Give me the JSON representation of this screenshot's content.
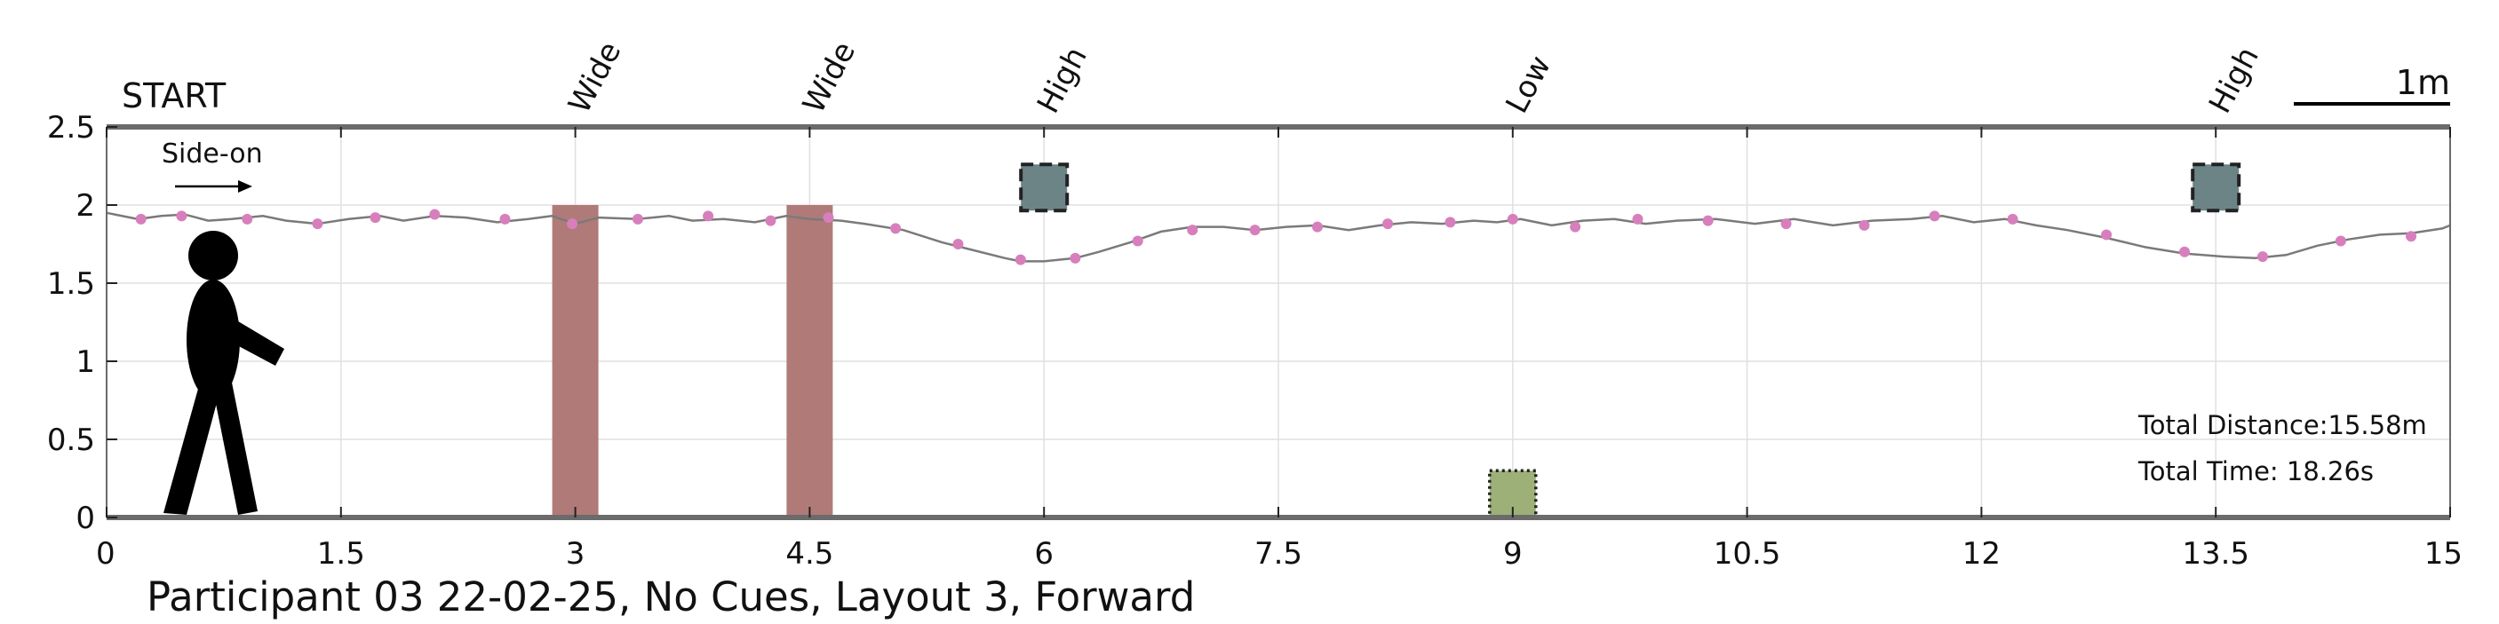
{
  "chart_data": {
    "type": "line",
    "title": "",
    "caption": "Participant 03 22-02-25, No Cues, Layout 3, Forward",
    "xlabel": "",
    "ylabel": "",
    "xlim": [
      0,
      15
    ],
    "ylim": [
      0,
      2.5
    ],
    "xticks": [
      0,
      1.5,
      3,
      4.5,
      6,
      7.5,
      9,
      10.5,
      12,
      13.5,
      15
    ],
    "xtick_labels": [
      "0",
      "1.5",
      "3",
      "4.5",
      "6",
      "7.5",
      "9",
      "10.5",
      "12",
      "13.5",
      "15"
    ],
    "yticks": [
      0,
      0.5,
      1,
      1.5,
      2,
      2.5
    ],
    "ytick_labels": [
      "0",
      "0.5",
      "1",
      "1.5",
      "2",
      "2.5"
    ],
    "grid": true,
    "start_label": "START",
    "direction_label": "Side-on",
    "scale_bar_label": "1m",
    "stats": {
      "distance": "Total Distance:15.58m",
      "time": "Total Time: 18.26s"
    },
    "obstacles": [
      {
        "label": "Wide",
        "x": 3.0,
        "kind": "wide"
      },
      {
        "label": "Wide",
        "x": 4.5,
        "kind": "wide"
      },
      {
        "label": "High",
        "x": 6.0,
        "kind": "high"
      },
      {
        "label": "Low",
        "x": 9.0,
        "kind": "low"
      },
      {
        "label": "High",
        "x": 13.5,
        "kind": "high"
      }
    ],
    "series": [
      {
        "path": {
          "x": [
            0,
            0.2,
            0.35,
            0.5,
            0.65,
            0.8,
            1.0,
            1.15,
            1.35,
            1.55,
            1.75,
            1.9,
            2.1,
            2.3,
            2.5,
            2.7,
            2.85,
            3.0,
            3.15,
            3.4,
            3.6,
            3.75,
            3.95,
            4.15,
            4.35,
            4.5,
            4.7,
            4.85,
            5.1,
            5.35,
            5.55,
            5.75,
            5.85,
            6.0,
            6.2,
            6.35,
            6.55,
            6.75,
            6.95,
            7.15,
            7.35,
            7.55,
            7.75,
            7.95,
            8.15,
            8.35,
            8.55,
            8.75,
            8.9,
            9.05,
            9.25,
            9.45,
            9.65,
            9.85,
            10.05,
            10.3,
            10.55,
            10.8,
            11.05,
            11.3,
            11.55,
            11.75,
            11.95,
            12.15,
            12.35,
            12.55,
            12.8,
            13.05,
            13.3,
            13.55,
            13.75,
            13.95,
            14.15,
            14.35,
            14.55,
            14.75,
            14.95,
            15.0
          ],
          "y": [
            1.95,
            1.91,
            1.93,
            1.94,
            1.9,
            1.91,
            1.93,
            1.9,
            1.88,
            1.91,
            1.93,
            1.9,
            1.93,
            1.92,
            1.89,
            1.91,
            1.93,
            1.88,
            1.92,
            1.91,
            1.93,
            1.9,
            1.91,
            1.89,
            1.93,
            1.91,
            1.9,
            1.88,
            1.84,
            1.76,
            1.71,
            1.66,
            1.64,
            1.64,
            1.66,
            1.7,
            1.76,
            1.83,
            1.86,
            1.86,
            1.84,
            1.86,
            1.87,
            1.84,
            1.87,
            1.89,
            1.88,
            1.9,
            1.89,
            1.91,
            1.87,
            1.9,
            1.91,
            1.88,
            1.9,
            1.91,
            1.88,
            1.91,
            1.87,
            1.9,
            1.91,
            1.93,
            1.89,
            1.91,
            1.87,
            1.84,
            1.79,
            1.73,
            1.69,
            1.67,
            1.66,
            1.68,
            1.74,
            1.78,
            1.81,
            1.82,
            1.85,
            1.87
          ]
        },
        "steps": {
          "x": [
            0.22,
            0.48,
            0.9,
            1.35,
            1.72,
            2.1,
            2.55,
            2.98,
            3.4,
            3.85,
            4.25,
            4.62,
            5.05,
            5.45,
            5.85,
            6.2,
            6.6,
            6.95,
            7.35,
            7.75,
            8.2,
            8.6,
            9.0,
            9.4,
            9.8,
            10.25,
            10.75,
            11.25,
            11.7,
            12.2,
            12.8,
            13.3,
            13.8,
            14.3,
            14.75
          ],
          "y": [
            1.91,
            1.93,
            1.91,
            1.88,
            1.92,
            1.94,
            1.91,
            1.88,
            1.91,
            1.93,
            1.9,
            1.92,
            1.85,
            1.75,
            1.65,
            1.66,
            1.77,
            1.84,
            1.84,
            1.86,
            1.88,
            1.89,
            1.91,
            1.86,
            1.91,
            1.9,
            1.88,
            1.87,
            1.93,
            1.91,
            1.81,
            1.7,
            1.67,
            1.77,
            1.8
          ]
        }
      }
    ],
    "colors": {
      "axis": "#6b6b6b",
      "grid": "#e0e0e0",
      "path": "#7a7a7a",
      "steps": "#d77fbd",
      "wide_obstacle": "#b07a78",
      "high_obstacle": "#6d8487",
      "low_obstacle": "#9db078",
      "figure": "#000000"
    }
  }
}
